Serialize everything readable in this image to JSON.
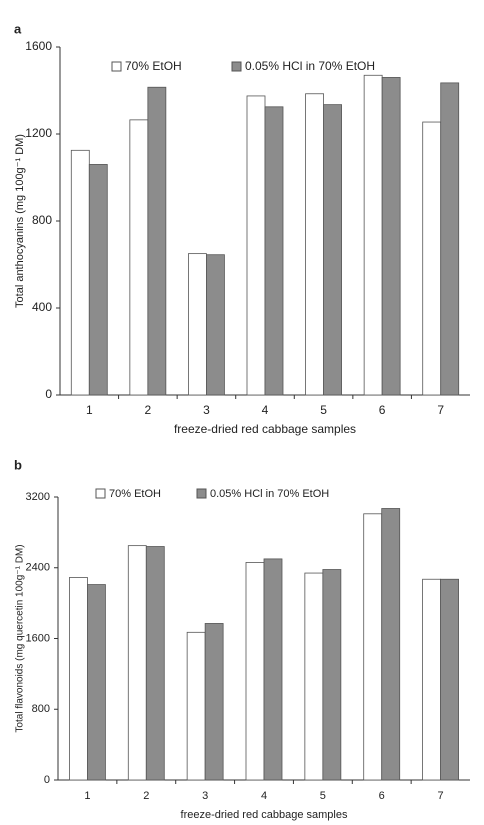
{
  "chart_data": [
    {
      "type": "bar",
      "panel": "a",
      "ylabel": "Total anthocyanins (mg 100g⁻¹ DM)",
      "xlabel": "freeze-dried red cabbage samples",
      "categories": [
        "1",
        "2",
        "3",
        "4",
        "5",
        "6",
        "7"
      ],
      "series": [
        {
          "name": "70% EtOH",
          "color": "#ffffff",
          "values": [
            1125,
            1265,
            650,
            1375,
            1385,
            1470,
            1255
          ]
        },
        {
          "name": "0.05% HCl in 70% EtOH",
          "color": "#8c8c8c",
          "values": [
            1060,
            1415,
            645,
            1325,
            1335,
            1460,
            1435
          ]
        }
      ],
      "ylim": [
        0,
        1600
      ],
      "yticks": [
        0,
        400,
        800,
        1200,
        1600
      ]
    },
    {
      "type": "bar",
      "panel": "b",
      "ylabel": "Total flavonoids (mg quercetin 100g⁻¹ DM)",
      "xlabel": "freeze-dried red cabbage samples",
      "categories": [
        "1",
        "2",
        "3",
        "4",
        "5",
        "6",
        "7"
      ],
      "series": [
        {
          "name": "70% EtOH",
          "color": "#ffffff",
          "values": [
            2290,
            2650,
            1670,
            2460,
            2340,
            3010,
            2270
          ]
        },
        {
          "name": "0.05% HCl in 70% EtOH",
          "color": "#8c8c8c",
          "values": [
            2210,
            2640,
            1770,
            2500,
            2380,
            3070,
            2270
          ]
        }
      ],
      "ylim": [
        0,
        3200
      ],
      "yticks": [
        0,
        800,
        1600,
        2400,
        3200
      ]
    }
  ]
}
